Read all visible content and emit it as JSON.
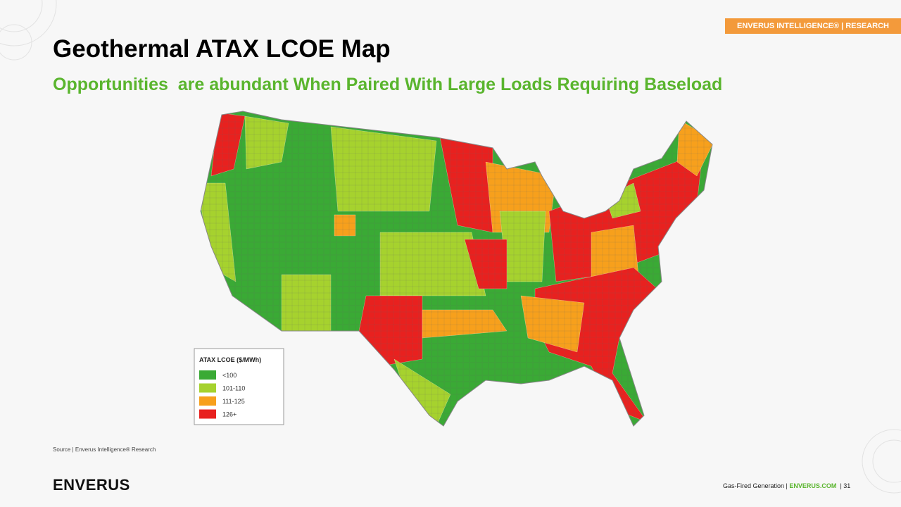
{
  "header": {
    "tag": "ENVERUS INTELLIGENCE® | RESEARCH",
    "title": "Geothermal ATAX LCOE Map",
    "subtitle": "Opportunities  are abundant When Paired With Large Loads Requiring Baseload"
  },
  "map": {
    "legend": {
      "title": "ATAX LCOE ($/MWh)",
      "items": [
        {
          "label": "<100",
          "color": "#3aaa35"
        },
        {
          "label": "101-110",
          "color": "#a6d22e"
        },
        {
          "label": "111-125",
          "color": "#f7a01c"
        },
        {
          "label": "126+",
          "color": "#e8211f"
        }
      ]
    }
  },
  "source": "Source | Enverus Intelligence® Research",
  "footer": {
    "section": "Gas-Fired Generation |",
    "site": "ENVERUS.COM",
    "page": "| 31",
    "logo": "ENVERUS"
  }
}
